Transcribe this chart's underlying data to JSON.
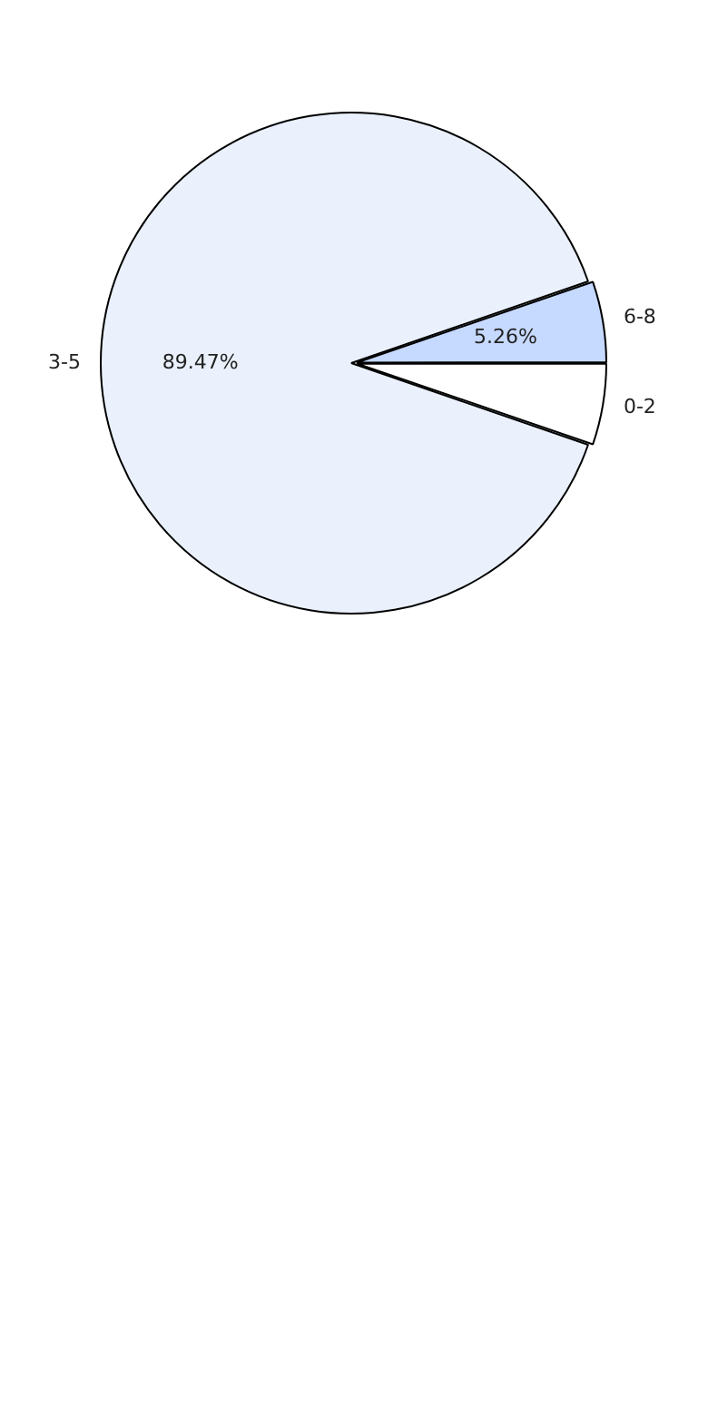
{
  "chart_data": {
    "type": "pie",
    "categories": [
      "0-2",
      "3-5",
      "6-8"
    ],
    "values": [
      5.26,
      89.47,
      5.26
    ],
    "colors": [
      "#ffffff",
      "#eaf1fd",
      "#c6d9fe"
    ],
    "value_labels": [
      null,
      "89.47%",
      "5.26%"
    ],
    "legend": false
  }
}
